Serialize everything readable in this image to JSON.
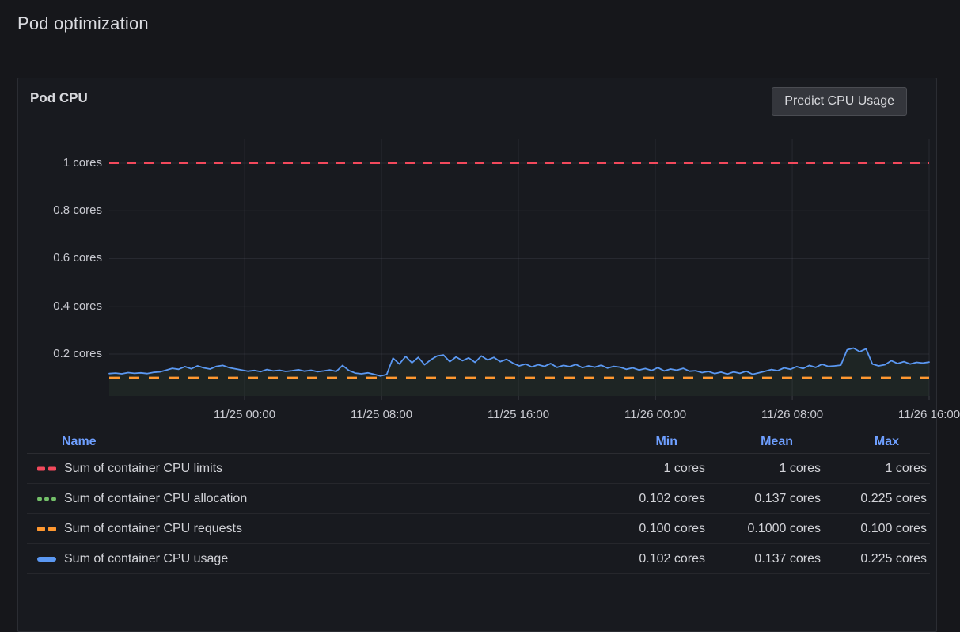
{
  "page": {
    "title": "Pod optimization"
  },
  "panel": {
    "title": "Pod CPU",
    "button_label": "Predict CPU Usage"
  },
  "colors": {
    "page_background": "#16171b",
    "panel_background": "#181a1f",
    "panel_border": "#2b2d33",
    "header_accent_blue": "#6e9fff",
    "series_red": "#f2495c",
    "series_green": "#73bf69",
    "series_orange": "#ff9830",
    "series_blue": "#5b98f2",
    "axis_text": "#c9cad1",
    "grid": "rgba(204,204,220,0.09)"
  },
  "legend": {
    "columns": [
      "Name",
      "Min",
      "Mean",
      "Max"
    ],
    "rows": [
      {
        "name": "Sum of container CPU limits",
        "color": "#f2495c",
        "style": "dashed",
        "min": "1 cores",
        "mean": "1 cores",
        "max": "1 cores"
      },
      {
        "name": "Sum of container CPU allocation",
        "color": "#73bf69",
        "style": "dotted",
        "min": "0.102 cores",
        "mean": "0.137 cores",
        "max": "0.225 cores"
      },
      {
        "name": "Sum of container CPU requests",
        "color": "#ff9830",
        "style": "dashed",
        "min": "0.100 cores",
        "mean": "0.1000 cores",
        "max": "0.100 cores"
      },
      {
        "name": "Sum of container CPU usage",
        "color": "#5b98f2",
        "style": "solid",
        "min": "0.102 cores",
        "mean": "0.137 cores",
        "max": "0.225 cores"
      }
    ]
  },
  "chart_data": {
    "type": "line",
    "title": "Pod CPU",
    "unit": "cores",
    "ylim": [
      0.024,
      1.0996
    ],
    "x_range": [
      "11/24 16:00",
      "11/26 16:00"
    ],
    "grid": true,
    "legend_position": "bottom-table",
    "y_ticks": [
      {
        "label": "1 cores",
        "v": 1.0
      },
      {
        "label": "0.8 cores",
        "v": 0.8
      },
      {
        "label": "0.6 cores",
        "v": 0.6
      },
      {
        "label": "0.4 cores",
        "v": 0.4
      },
      {
        "label": "0.2 cores",
        "v": 0.2
      }
    ],
    "x_ticks": [
      {
        "label": "11/25 00:00",
        "f": 0.1651
      },
      {
        "label": "11/25 08:00",
        "f": 0.3321
      },
      {
        "label": "11/25 16:00",
        "f": 0.4991
      },
      {
        "label": "11/26 00:00",
        "f": 0.6661
      },
      {
        "label": "11/26 08:00",
        "f": 0.8331
      },
      {
        "label": "11/26 16:00",
        "f": 1.0
      }
    ],
    "series": [
      {
        "name": "Sum of container CPU limits",
        "color": "#f2495c",
        "line_style": "dashed",
        "stroke_width": 2,
        "dash": "12 10",
        "constant": 1.0
      },
      {
        "name": "Sum of container CPU allocation",
        "color": "#73bf69",
        "line_style": "dotted",
        "hidden": true,
        "note": "identical to usage series; hidden beneath it"
      },
      {
        "name": "Sum of container CPU requests",
        "color": "#ff9830",
        "line_style": "dashed",
        "stroke_width": 3,
        "dash": "13 12",
        "constant": 0.1
      },
      {
        "name": "Sum of container CPU usage",
        "color": "#5b98f2",
        "line_style": "solid",
        "stroke_width": 1.8,
        "fill_opacity": 0.07,
        "values": [
          0.118,
          0.12,
          0.117,
          0.122,
          0.119,
          0.121,
          0.118,
          0.123,
          0.125,
          0.132,
          0.14,
          0.136,
          0.147,
          0.138,
          0.15,
          0.142,
          0.137,
          0.148,
          0.152,
          0.143,
          0.138,
          0.133,
          0.128,
          0.131,
          0.126,
          0.135,
          0.129,
          0.132,
          0.127,
          0.13,
          0.134,
          0.128,
          0.132,
          0.126,
          0.129,
          0.133,
          0.127,
          0.152,
          0.131,
          0.12,
          0.117,
          0.121,
          0.115,
          0.108,
          0.114,
          0.183,
          0.158,
          0.19,
          0.163,
          0.186,
          0.155,
          0.176,
          0.192,
          0.196,
          0.168,
          0.188,
          0.172,
          0.184,
          0.165,
          0.192,
          0.175,
          0.186,
          0.168,
          0.178,
          0.162,
          0.15,
          0.158,
          0.146,
          0.155,
          0.148,
          0.16,
          0.144,
          0.152,
          0.147,
          0.156,
          0.143,
          0.15,
          0.145,
          0.153,
          0.141,
          0.148,
          0.145,
          0.136,
          0.142,
          0.133,
          0.139,
          0.131,
          0.143,
          0.129,
          0.137,
          0.132,
          0.14,
          0.128,
          0.13,
          0.122,
          0.127,
          0.118,
          0.124,
          0.116,
          0.125,
          0.119,
          0.128,
          0.115,
          0.121,
          0.128,
          0.135,
          0.13,
          0.142,
          0.136,
          0.147,
          0.139,
          0.152,
          0.144,
          0.157,
          0.148,
          0.15,
          0.153,
          0.218,
          0.225,
          0.21,
          0.222,
          0.158,
          0.15,
          0.155,
          0.172,
          0.16,
          0.168,
          0.158,
          0.165,
          0.162,
          0.166
        ]
      }
    ]
  }
}
